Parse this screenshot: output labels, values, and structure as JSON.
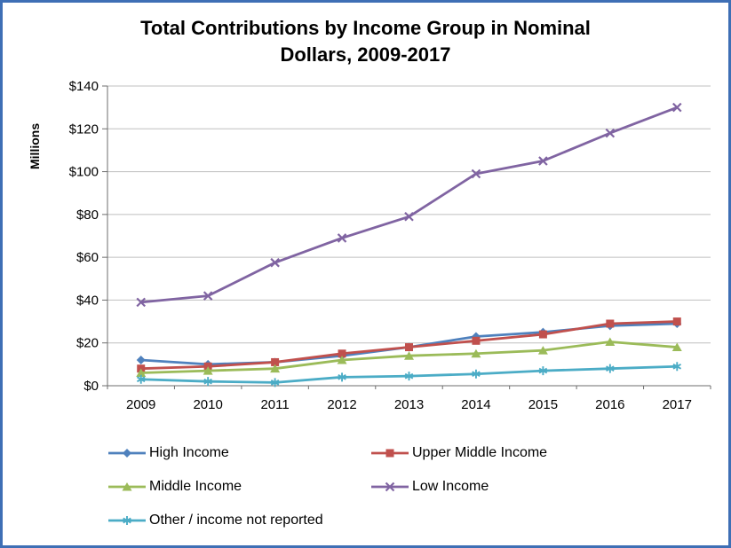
{
  "colors": {
    "frame": "#3E6FB5",
    "grid": "#BFBFBF",
    "axis": "#6E6E6E",
    "text": "#000000",
    "background": "#FFFFFF"
  },
  "chart_data": {
    "type": "line",
    "title": "Total Contributions by Income Group in Nominal Dollars, 2009-2017",
    "title_lines": [
      "Total Contributions by Income Group in Nominal",
      "Dollars, 2009-2017"
    ],
    "xlabel": "",
    "ylabel": "Millions",
    "categories": [
      "2009",
      "2010",
      "2011",
      "2012",
      "2013",
      "2014",
      "2015",
      "2016",
      "2017"
    ],
    "ylim": [
      0,
      140
    ],
    "ytick_step": 20,
    "ytick_labels": [
      "$0",
      "$20",
      "$40",
      "$60",
      "$80",
      "$100",
      "$120",
      "$140"
    ],
    "grid": true,
    "legend_position": "bottom",
    "series": [
      {
        "name": "High Income",
        "color": "#4F81BD",
        "marker": "diamond",
        "values": [
          12,
          10,
          11,
          14,
          18,
          23,
          25,
          28,
          29
        ]
      },
      {
        "name": "Upper Middle Income",
        "color": "#C0504D",
        "marker": "square",
        "values": [
          8,
          9,
          11,
          15,
          18,
          21,
          24,
          29,
          30
        ]
      },
      {
        "name": "Middle Income",
        "color": "#9BBB59",
        "marker": "triangle",
        "values": [
          6,
          7,
          8,
          12,
          14,
          15,
          16.5,
          20.5,
          18
        ]
      },
      {
        "name": "Low Income",
        "color": "#8064A2",
        "marker": "x",
        "values": [
          39,
          42,
          57.5,
          69,
          79,
          99,
          105,
          118,
          130
        ]
      },
      {
        "name": "Other / income not reported",
        "color": "#4BACC6",
        "marker": "asterisk",
        "values": [
          3,
          2,
          1.5,
          4,
          4.5,
          5.5,
          7,
          8,
          9
        ]
      }
    ]
  }
}
